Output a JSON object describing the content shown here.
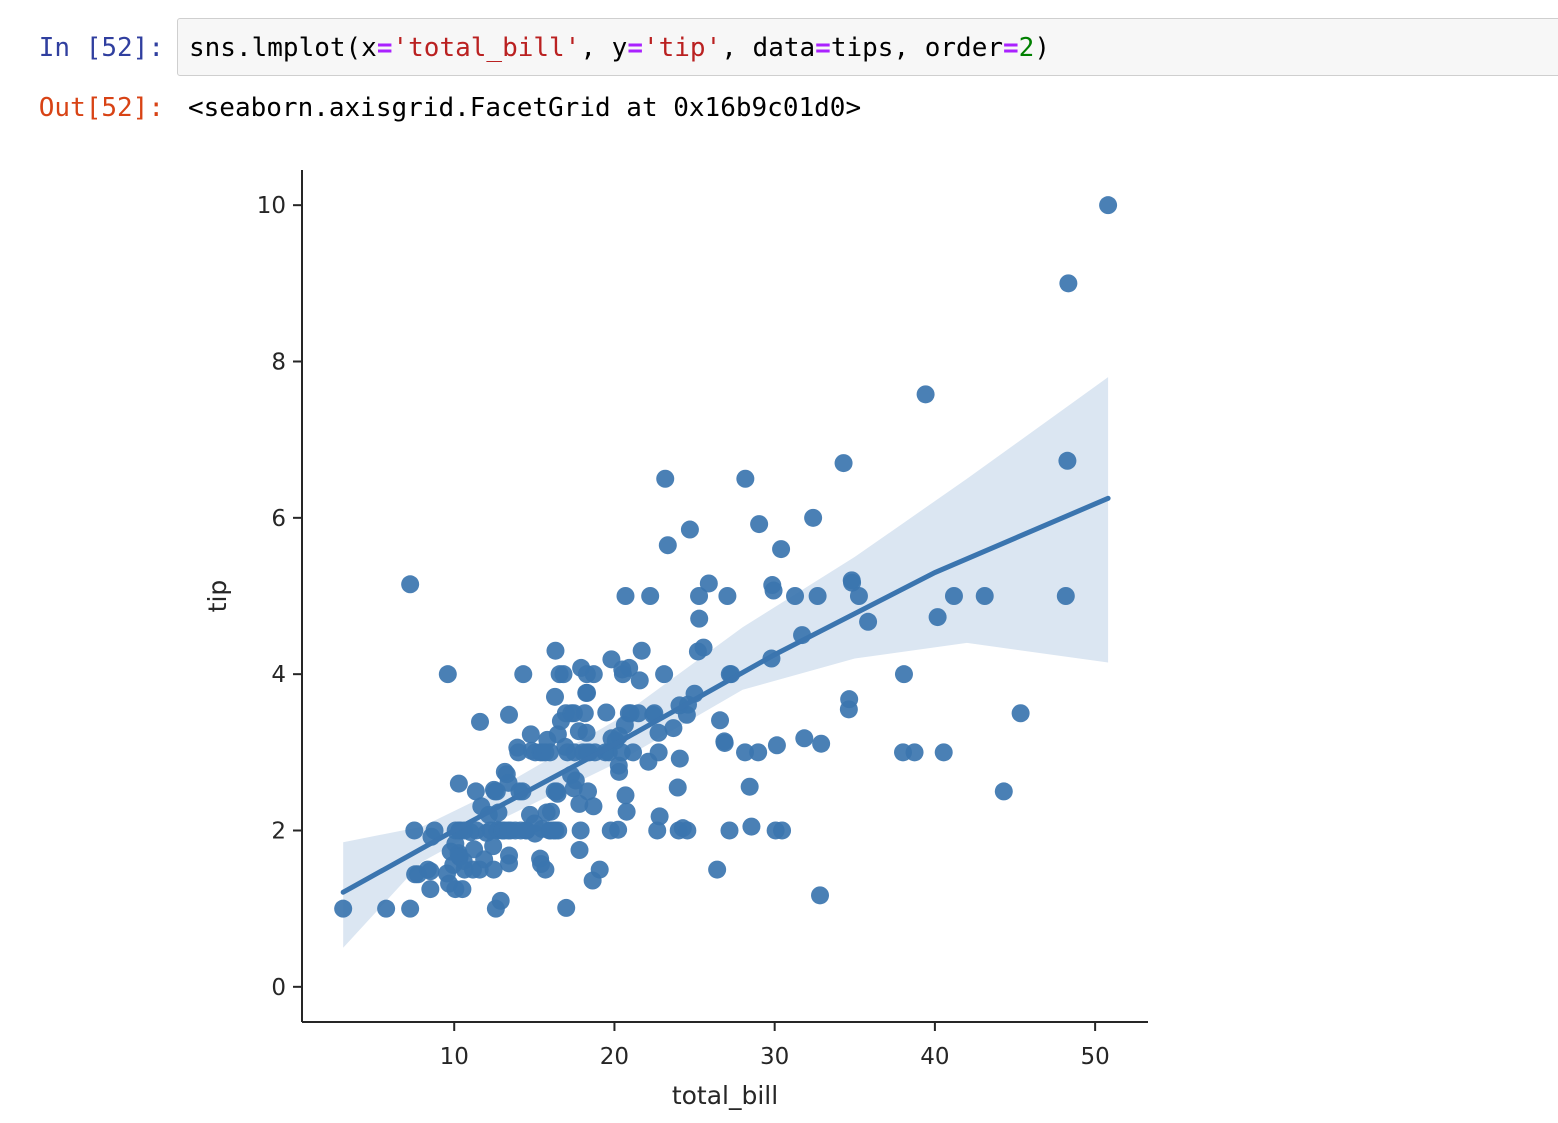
{
  "cell": {
    "in_prompt": "In [52]:",
    "out_prompt": "Out[52]:",
    "code_tokens": [
      {
        "text": "sns.lmplot(x",
        "kind": "plain"
      },
      {
        "text": "=",
        "kind": "op"
      },
      {
        "text": "'total_bill'",
        "kind": "str"
      },
      {
        "text": ", y",
        "kind": "plain"
      },
      {
        "text": "=",
        "kind": "op"
      },
      {
        "text": "'tip'",
        "kind": "str"
      },
      {
        "text": ", data",
        "kind": "plain"
      },
      {
        "text": "=",
        "kind": "op"
      },
      {
        "text": "tips, order",
        "kind": "plain"
      },
      {
        "text": "=",
        "kind": "op"
      },
      {
        "text": "2",
        "kind": "num"
      },
      {
        "text": ")",
        "kind": "plain"
      }
    ],
    "output_text": "<seaborn.axisgrid.FacetGrid at 0x16b9c01d0>"
  },
  "colors": {
    "point": "#3b75af",
    "line": "#3b75af",
    "band": "#dbe6f2",
    "prompt_in": "#303f9f",
    "prompt_out": "#d84315"
  },
  "chart_data": {
    "type": "scatter",
    "xlabel": "total_bill",
    "ylabel": "tip",
    "xlim": [
      0.5,
      53.3
    ],
    "ylim": [
      -0.45,
      10.45
    ],
    "xticks": [
      10,
      20,
      30,
      40,
      50
    ],
    "yticks": [
      0,
      2,
      4,
      6,
      8,
      10
    ],
    "x_tick_labels": [
      "10",
      "20",
      "30",
      "40",
      "50"
    ],
    "y_tick_labels": [
      "0",
      "2",
      "4",
      "6",
      "8",
      "10"
    ],
    "grid": false,
    "regression": {
      "order": 2,
      "line": [
        [
          3.07,
          1.21
        ],
        [
          10,
          2.0
        ],
        [
          20,
          3.1
        ],
        [
          30,
          4.25
        ],
        [
          40,
          5.3
        ],
        [
          50.81,
          6.25
        ]
      ],
      "ci_upper": [
        [
          3.07,
          1.85
        ],
        [
          8,
          2.05
        ],
        [
          12,
          2.45
        ],
        [
          20,
          3.4
        ],
        [
          28,
          4.6
        ],
        [
          35,
          5.5
        ],
        [
          42,
          6.5
        ],
        [
          50.81,
          7.8
        ]
      ],
      "ci_lower": [
        [
          3.07,
          0.5
        ],
        [
          8,
          1.6
        ],
        [
          12,
          2.05
        ],
        [
          20,
          2.85
        ],
        [
          28,
          3.8
        ],
        [
          35,
          4.2
        ],
        [
          42,
          4.4
        ],
        [
          50.81,
          4.15
        ]
      ]
    },
    "points": [
      [
        3.07,
        1.0
      ],
      [
        5.75,
        1.0
      ],
      [
        7.25,
        1.0
      ],
      [
        7.25,
        5.15
      ],
      [
        7.51,
        2.0
      ],
      [
        7.56,
        1.44
      ],
      [
        7.74,
        1.44
      ],
      [
        8.35,
        1.5
      ],
      [
        8.51,
        1.25
      ],
      [
        8.52,
        1.48
      ],
      [
        8.58,
        1.92
      ],
      [
        8.77,
        2.0
      ],
      [
        9.55,
        1.45
      ],
      [
        9.6,
        4.0
      ],
      [
        9.68,
        1.32
      ],
      [
        9.78,
        1.73
      ],
      [
        9.94,
        1.56
      ],
      [
        10.07,
        1.83
      ],
      [
        10.07,
        1.25
      ],
      [
        10.09,
        2.0
      ],
      [
        10.27,
        1.71
      ],
      [
        10.29,
        2.6
      ],
      [
        10.33,
        1.67
      ],
      [
        10.33,
        2.0
      ],
      [
        10.34,
        1.66
      ],
      [
        10.34,
        2.0
      ],
      [
        10.51,
        1.25
      ],
      [
        10.59,
        1.61
      ],
      [
        10.63,
        2.0
      ],
      [
        10.65,
        1.5
      ],
      [
        11.02,
        1.98
      ],
      [
        11.17,
        1.5
      ],
      [
        11.24,
        1.76
      ],
      [
        11.35,
        2.5
      ],
      [
        11.38,
        2.0
      ],
      [
        11.59,
        1.5
      ],
      [
        11.61,
        3.39
      ],
      [
        11.69,
        2.31
      ],
      [
        11.87,
        1.63
      ],
      [
        12.02,
        1.97
      ],
      [
        12.16,
        2.2
      ],
      [
        12.26,
        2.0
      ],
      [
        12.43,
        1.8
      ],
      [
        12.46,
        1.5
      ],
      [
        12.48,
        2.52
      ],
      [
        12.54,
        2.5
      ],
      [
        12.6,
        1.0
      ],
      [
        12.66,
        2.5
      ],
      [
        12.69,
        2.0
      ],
      [
        12.74,
        2.01
      ],
      [
        12.76,
        2.23
      ],
      [
        12.9,
        1.1
      ],
      [
        13.0,
        2.0
      ],
      [
        13.03,
        2.0
      ],
      [
        13.13,
        2.0
      ],
      [
        13.16,
        2.75
      ],
      [
        13.28,
        2.72
      ],
      [
        13.37,
        2.0
      ],
      [
        13.39,
        2.61
      ],
      [
        13.42,
        3.48
      ],
      [
        13.42,
        1.58
      ],
      [
        13.42,
        1.68
      ],
      [
        13.51,
        2.0
      ],
      [
        13.81,
        2.0
      ],
      [
        13.94,
        3.06
      ],
      [
        14.0,
        3.0
      ],
      [
        14.07,
        2.5
      ],
      [
        14.15,
        2.0
      ],
      [
        14.26,
        2.5
      ],
      [
        14.31,
        4.0
      ],
      [
        14.48,
        2.0
      ],
      [
        14.52,
        2.0
      ],
      [
        14.73,
        2.2
      ],
      [
        14.78,
        3.23
      ],
      [
        14.83,
        3.02
      ],
      [
        15.01,
        2.09
      ],
      [
        15.04,
        1.96
      ],
      [
        15.06,
        3.0
      ],
      [
        15.36,
        1.64
      ],
      [
        15.38,
        3.0
      ],
      [
        15.42,
        1.57
      ],
      [
        15.48,
        2.02
      ],
      [
        15.53,
        3.0
      ],
      [
        15.69,
        1.5
      ],
      [
        15.69,
        3.0
      ],
      [
        15.77,
        2.23
      ],
      [
        15.81,
        3.16
      ],
      [
        15.95,
        2.0
      ],
      [
        15.98,
        3.0
      ],
      [
        16.0,
        2.0
      ],
      [
        16.04,
        2.24
      ],
      [
        16.21,
        2.0
      ],
      [
        16.27,
        2.5
      ],
      [
        16.29,
        3.71
      ],
      [
        16.31,
        2.0
      ],
      [
        16.32,
        4.3
      ],
      [
        16.4,
        2.5
      ],
      [
        16.45,
        2.47
      ],
      [
        16.47,
        3.23
      ],
      [
        16.49,
        2.0
      ],
      [
        16.58,
        4.0
      ],
      [
        16.66,
        3.4
      ],
      [
        16.82,
        4.0
      ],
      [
        16.93,
        3.07
      ],
      [
        16.97,
        3.5
      ],
      [
        16.99,
        1.01
      ],
      [
        17.07,
        3.0
      ],
      [
        17.29,
        2.71
      ],
      [
        17.31,
        3.5
      ],
      [
        17.46,
        2.54
      ],
      [
        17.47,
        3.5
      ],
      [
        17.51,
        3.0
      ],
      [
        17.59,
        2.64
      ],
      [
        17.78,
        3.27
      ],
      [
        17.81,
        2.34
      ],
      [
        17.82,
        1.75
      ],
      [
        17.89,
        2.0
      ],
      [
        17.92,
        4.08
      ],
      [
        18.04,
        3.0
      ],
      [
        18.15,
        3.5
      ],
      [
        18.24,
        3.76
      ],
      [
        18.26,
        3.25
      ],
      [
        18.28,
        4.0
      ],
      [
        18.29,
        3.76
      ],
      [
        18.29,
        3.0
      ],
      [
        18.35,
        2.5
      ],
      [
        18.43,
        3.0
      ],
      [
        18.64,
        1.36
      ],
      [
        18.69,
        2.31
      ],
      [
        18.71,
        4.0
      ],
      [
        18.78,
        3.0
      ],
      [
        19.08,
        1.5
      ],
      [
        19.44,
        3.0
      ],
      [
        19.49,
        3.51
      ],
      [
        19.65,
        3.0
      ],
      [
        19.77,
        2.0
      ],
      [
        19.81,
        4.19
      ],
      [
        19.82,
        3.18
      ],
      [
        20.08,
        3.15
      ],
      [
        20.23,
        2.01
      ],
      [
        20.27,
        2.83
      ],
      [
        20.29,
        2.75
      ],
      [
        20.29,
        3.21
      ],
      [
        20.45,
        3.0
      ],
      [
        20.49,
        4.06
      ],
      [
        20.53,
        4.0
      ],
      [
        20.65,
        3.35
      ],
      [
        20.69,
        2.45
      ],
      [
        20.69,
        5.0
      ],
      [
        20.76,
        2.24
      ],
      [
        20.9,
        3.5
      ],
      [
        20.92,
        4.08
      ],
      [
        21.01,
        3.5
      ],
      [
        21.16,
        3.0
      ],
      [
        21.5,
        3.5
      ],
      [
        21.58,
        3.92
      ],
      [
        21.7,
        4.3
      ],
      [
        22.12,
        2.88
      ],
      [
        22.23,
        5.0
      ],
      [
        22.42,
        3.48
      ],
      [
        22.49,
        3.5
      ],
      [
        22.67,
        2.0
      ],
      [
        22.75,
        3.25
      ],
      [
        22.76,
        3.0
      ],
      [
        22.82,
        2.18
      ],
      [
        23.1,
        4.0
      ],
      [
        23.17,
        6.5
      ],
      [
        23.33,
        5.65
      ],
      [
        23.68,
        3.31
      ],
      [
        23.95,
        2.55
      ],
      [
        24.01,
        2.0
      ],
      [
        24.06,
        3.6
      ],
      [
        24.08,
        2.92
      ],
      [
        24.27,
        2.03
      ],
      [
        24.52,
        3.48
      ],
      [
        24.55,
        2.0
      ],
      [
        24.59,
        3.61
      ],
      [
        24.71,
        5.85
      ],
      [
        25.0,
        3.75
      ],
      [
        25.21,
        4.29
      ],
      [
        25.28,
        5.0
      ],
      [
        25.29,
        4.71
      ],
      [
        25.56,
        4.34
      ],
      [
        25.89,
        5.16
      ],
      [
        26.41,
        1.5
      ],
      [
        26.59,
        3.41
      ],
      [
        26.86,
        3.14
      ],
      [
        26.88,
        3.12
      ],
      [
        27.05,
        5.0
      ],
      [
        27.18,
        2.0
      ],
      [
        27.2,
        4.0
      ],
      [
        27.28,
        4.0
      ],
      [
        28.15,
        3.0
      ],
      [
        28.17,
        6.5
      ],
      [
        28.44,
        2.56
      ],
      [
        28.55,
        2.05
      ],
      [
        28.97,
        3.0
      ],
      [
        29.03,
        5.92
      ],
      [
        29.8,
        4.2
      ],
      [
        29.85,
        5.14
      ],
      [
        29.93,
        5.07
      ],
      [
        30.06,
        2.0
      ],
      [
        30.14,
        3.09
      ],
      [
        30.4,
        5.6
      ],
      [
        30.46,
        2.0
      ],
      [
        31.27,
        5.0
      ],
      [
        31.71,
        4.5
      ],
      [
        31.85,
        3.18
      ],
      [
        32.4,
        6.0
      ],
      [
        32.68,
        5.0
      ],
      [
        32.83,
        1.17
      ],
      [
        32.9,
        3.11
      ],
      [
        34.3,
        6.7
      ],
      [
        34.63,
        3.55
      ],
      [
        34.65,
        3.68
      ],
      [
        34.81,
        5.2
      ],
      [
        34.83,
        5.17
      ],
      [
        35.26,
        5.0
      ],
      [
        35.83,
        4.67
      ],
      [
        38.01,
        3.0
      ],
      [
        38.07,
        4.0
      ],
      [
        38.73,
        3.0
      ],
      [
        39.42,
        7.58
      ],
      [
        40.17,
        4.73
      ],
      [
        40.55,
        3.0
      ],
      [
        41.19,
        5.0
      ],
      [
        43.11,
        5.0
      ],
      [
        44.3,
        2.5
      ],
      [
        45.35,
        3.5
      ],
      [
        48.17,
        5.0
      ],
      [
        48.27,
        6.73
      ],
      [
        48.33,
        9.0
      ],
      [
        50.81,
        10.0
      ]
    ]
  }
}
